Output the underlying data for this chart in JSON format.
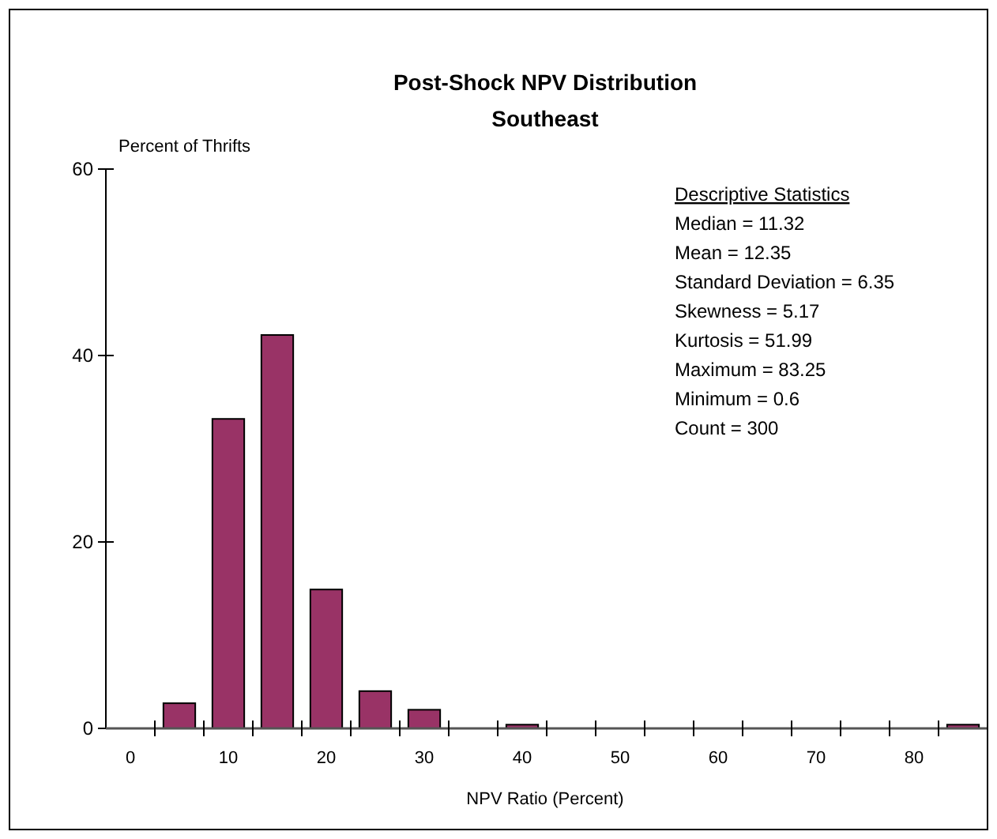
{
  "chart_data": {
    "type": "bar",
    "title": "Post-Shock NPV Distribution",
    "subtitle": "Southeast",
    "ylabel": "Percent of Thrifts",
    "xlabel": "NPV Ratio (Percent)",
    "categories": [
      "0",
      null,
      "10",
      null,
      "20",
      null,
      "30",
      null,
      "40",
      null,
      "50",
      null,
      "60",
      null,
      "70",
      null,
      "80",
      null
    ],
    "values": [
      0,
      2.7,
      33.2,
      42.2,
      14.9,
      4.0,
      2.0,
      0,
      0.4,
      0,
      0,
      0,
      0,
      0,
      0,
      0,
      0,
      0.4
    ],
    "color": "#993366",
    "ylim": [
      0,
      60
    ],
    "yticks": [
      0,
      20,
      40,
      60
    ],
    "grid": false,
    "annotations": [
      "Descriptive Statistics",
      "Median = 11.32",
      "Mean = 12.35",
      "Standard Deviation = 6.35",
      "Skewness = 5.17",
      "Kurtosis = 51.99",
      "Maximum = 83.25",
      "Minimum = 0.6",
      "Count = 300"
    ]
  }
}
